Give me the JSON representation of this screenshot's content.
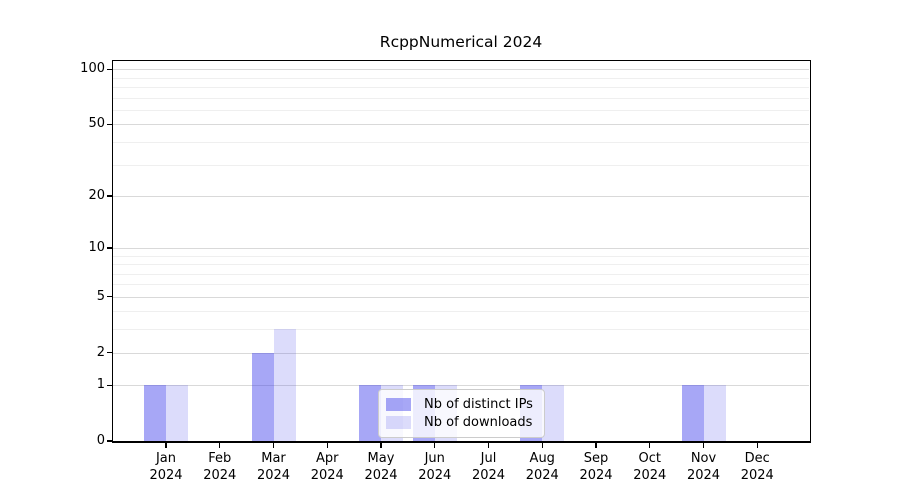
{
  "title": "RcppNumerical 2024",
  "chart_data": {
    "type": "bar",
    "title": "RcppNumerical 2024",
    "categories": [
      "Jan",
      "Feb",
      "Mar",
      "Apr",
      "May",
      "Jun",
      "Jul",
      "Aug",
      "Sep",
      "Oct",
      "Nov",
      "Dec"
    ],
    "year": "2024",
    "series": [
      {
        "name": "Nb of distinct IPs",
        "color": "rgba(60,60,235,0.45)",
        "values": [
          1,
          0,
          2,
          0,
          1,
          1,
          0,
          1,
          0,
          0,
          1,
          0
        ]
      },
      {
        "name": "Nb of downloads",
        "color": "rgba(60,60,235,0.18)",
        "values": [
          1,
          0,
          3,
          0,
          1,
          1,
          0,
          1,
          0,
          0,
          1,
          0
        ]
      }
    ],
    "xlabel": "",
    "ylabel": "",
    "yscale": "log1p",
    "yticks": [
      0,
      1,
      2,
      5,
      10,
      20,
      50,
      100
    ],
    "minor_yticks": [
      3,
      4,
      6,
      7,
      8,
      9,
      30,
      40,
      60,
      70,
      80,
      90
    ],
    "ylim": [
      0,
      111
    ],
    "grid": true,
    "legend_position": "lower center",
    "colors": {
      "major_grid": "#d9d9d9",
      "minor_grid": "#efefef",
      "spine": "#000000",
      "legend_border": "#cccccc",
      "text": "#000000"
    }
  }
}
